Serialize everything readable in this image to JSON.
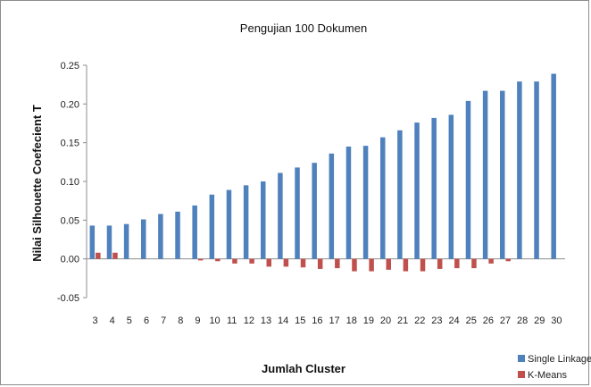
{
  "chart_data": {
    "type": "bar",
    "title": "Pengujian 100 Dokumen",
    "xlabel": "Jumlah  Cluster",
    "ylabel": "Nilai  Silhouette  Coefecient T",
    "categories": [
      "3",
      "4",
      "5",
      "6",
      "7",
      "8",
      "9",
      "10",
      "11",
      "12",
      "13",
      "14",
      "15",
      "16",
      "17",
      "18",
      "19",
      "20",
      "21",
      "22",
      "23",
      "24",
      "25",
      "26",
      "27",
      "28",
      "29",
      "30"
    ],
    "series": [
      {
        "name": "Single Linkage",
        "color": "#4f81bd",
        "values": [
          0.043,
          0.043,
          0.045,
          0.051,
          0.058,
          0.061,
          0.069,
          0.083,
          0.089,
          0.095,
          0.1,
          0.111,
          0.118,
          0.124,
          0.136,
          0.145,
          0.146,
          0.157,
          0.166,
          0.176,
          0.182,
          0.186,
          0.204,
          0.217,
          0.217,
          0.229,
          0.229,
          0.239
        ]
      },
      {
        "name": "K-Means",
        "color": "#c0504d",
        "values": [
          0.008,
          0.008,
          0.0,
          0.0,
          0.0,
          0.0,
          -0.002,
          -0.003,
          -0.006,
          -0.006,
          -0.01,
          -0.01,
          -0.011,
          -0.013,
          -0.012,
          -0.016,
          -0.016,
          -0.014,
          -0.016,
          -0.016,
          -0.013,
          -0.012,
          -0.012,
          -0.006,
          -0.003,
          0.0,
          0.0,
          0.0
        ]
      }
    ],
    "ylim": [
      -0.05,
      0.25
    ],
    "yticks": [
      "0.25",
      "0.20",
      "0.15",
      "0.10",
      "0.05",
      "0.00",
      "-0.05"
    ],
    "ytick_values": [
      0.25,
      0.2,
      0.15,
      0.1,
      0.05,
      0.0,
      -0.05
    ],
    "grid": false,
    "legend_position": "bottom-right"
  }
}
